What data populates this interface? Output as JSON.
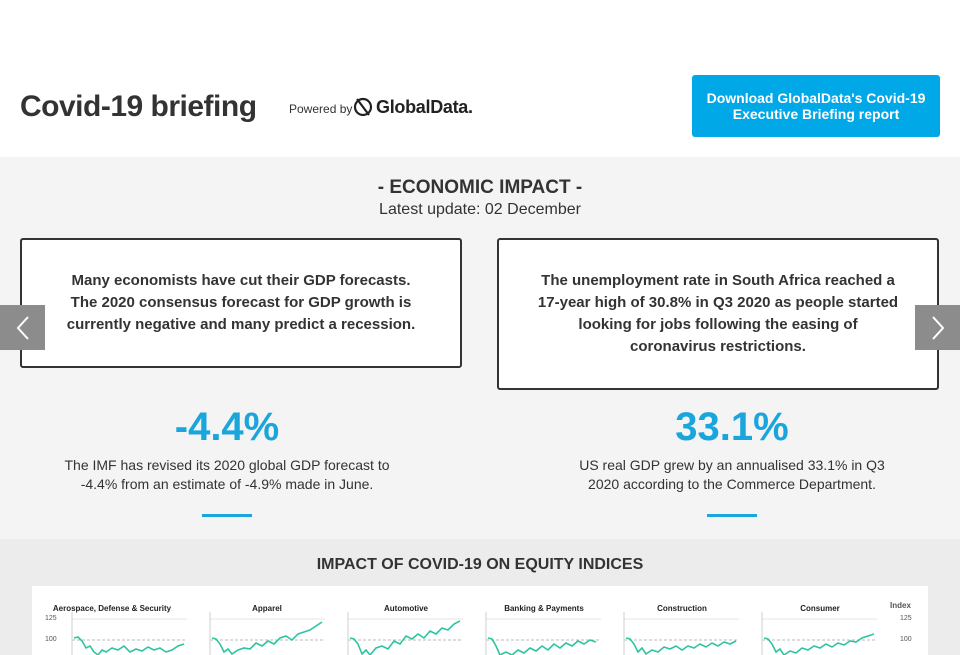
{
  "header": {
    "title": "Covid-19 briefing",
    "powered_by": "Powered by",
    "logo_text": "GlobalData.",
    "download_button": {
      "line1": "Download GlobalData's Covid-19",
      "line2": "Executive Briefing report"
    }
  },
  "economic_impact": {
    "title": "- ECONOMIC IMPACT -",
    "subtitle": "Latest update: 02 December",
    "cards": [
      "Many economists have cut their GDP forecasts. The 2020 consensus forecast for GDP growth is currently negative and many predict a recession.",
      "The unemployment rate in South Africa reached a 17-year high of 30.8% in Q3 2020 as people started looking for jobs following the easing of coronavirus restrictions."
    ],
    "stats": [
      {
        "value": "-4.4%",
        "desc": "The IMF has revised its 2020 global GDP forecast to -4.4% from an estimate of -4.9% made in June."
      },
      {
        "value": "33.1%",
        "desc": "US real GDP grew by an annualised 33.1% in Q3 2020 according to the Commerce Department."
      }
    ]
  },
  "equity": {
    "title": "IMPACT OF COVID-19 ON EQUITY INDICES",
    "index_label": "Index",
    "ticks": [
      "125",
      "100"
    ],
    "panels": [
      "Aerospace, Defense & Security",
      "Apparel",
      "Automotive",
      "Banking & Payments",
      "Construction",
      "Consumer"
    ]
  },
  "colors": {
    "accent": "#00a8e8",
    "stat": "#1aa6dc",
    "line": "#2ec4a0"
  }
}
